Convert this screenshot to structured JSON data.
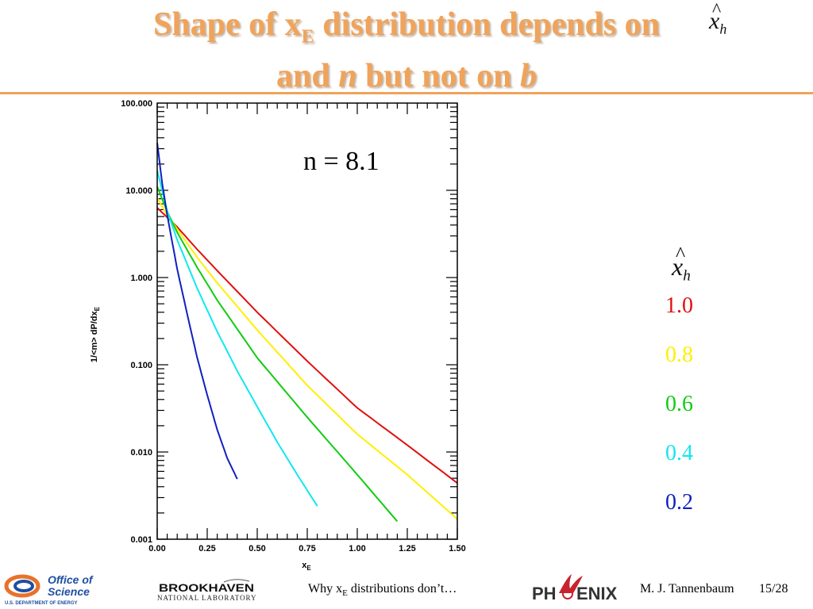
{
  "title": {
    "line1_pre": "Shape of x",
    "line1_sub": "E",
    "line1_post": " distribution depends on",
    "line2_pre": "and ",
    "line2_n": "n",
    "line2_mid": " but not on ",
    "line2_b": "b"
  },
  "xhat_symbol": {
    "base": "x",
    "sub": "h",
    "hat": "^"
  },
  "annotation": "n = 8.1",
  "legend": {
    "items": [
      {
        "label": "1.0",
        "color": "#e01010"
      },
      {
        "label": "0.8",
        "color": "#ffef00"
      },
      {
        "label": "0.6",
        "color": "#10cc10"
      },
      {
        "label": "0.4",
        "color": "#10e8f0"
      },
      {
        "label": "0.2",
        "color": "#1020c0"
      }
    ]
  },
  "chart_data": {
    "type": "line",
    "xlabel_base": "x",
    "xlabel_sub": "E",
    "ylabel_left": "1/<m>",
    "ylabel_right_base": "dP/dx",
    "ylabel_right_sub": "E",
    "xlim": [
      0,
      1.5
    ],
    "ylim": [
      0.001,
      100
    ],
    "y_scale": "log",
    "x_ticks": [
      "0.00",
      "0.25",
      "0.50",
      "0.75",
      "1.00",
      "1.25",
      "1.50"
    ],
    "y_ticks": [
      "0.001",
      "0.010",
      "0.100",
      "1.000",
      "10.000",
      "100.000"
    ],
    "series": [
      {
        "name": "1.0",
        "color": "#e01010",
        "x": [
          0,
          0.05,
          0.1,
          0.2,
          0.3,
          0.5,
          0.75,
          1.0,
          1.25,
          1.5
        ],
        "y": [
          6.3,
          4.9,
          3.8,
          2.1,
          1.2,
          0.4,
          0.11,
          0.032,
          0.012,
          0.0044
        ]
      },
      {
        "name": "0.8",
        "color": "#ffef00",
        "x": [
          0,
          0.05,
          0.1,
          0.2,
          0.3,
          0.5,
          0.75,
          1.0,
          1.25,
          1.5
        ],
        "y": [
          8.2,
          5.2,
          3.6,
          1.7,
          0.87,
          0.25,
          0.058,
          0.016,
          0.0055,
          0.0017
        ]
      },
      {
        "name": "0.6",
        "color": "#10cc10",
        "x": [
          0,
          0.05,
          0.1,
          0.2,
          0.3,
          0.5,
          0.75,
          1.0,
          1.2
        ],
        "y": [
          11,
          5.7,
          3.3,
          1.3,
          0.55,
          0.12,
          0.025,
          0.0055,
          0.0016
        ]
      },
      {
        "name": "0.4",
        "color": "#10e8f0",
        "x": [
          0,
          0.05,
          0.1,
          0.2,
          0.3,
          0.4,
          0.5,
          0.6,
          0.7,
          0.8
        ],
        "y": [
          17,
          5.8,
          2.7,
          0.75,
          0.24,
          0.085,
          0.033,
          0.013,
          0.0055,
          0.0024
        ]
      },
      {
        "name": "0.2",
        "color": "#1020c0",
        "x": [
          0,
          0.025,
          0.05,
          0.1,
          0.15,
          0.2,
          0.25,
          0.3,
          0.35,
          0.4
        ],
        "y": [
          35,
          12,
          5.2,
          1.25,
          0.38,
          0.12,
          0.045,
          0.018,
          0.0085,
          0.0049
        ]
      }
    ]
  },
  "footer": {
    "talk_pre": "Why x",
    "talk_sub": "E",
    "talk_post": " distributions don’t…",
    "author": "M. J. Tannenbaum",
    "page": "15/28",
    "ofs_line1": "Office of",
    "ofs_line2": "Science",
    "ofs_line3": "U.S. DEPARTMENT OF ENERGY",
    "bnl_line1": "BROOKHAVEN",
    "bnl_line2": "NATIONAL LABORATORY",
    "phx_pre": "PH",
    "phx_post": "ENIX"
  }
}
